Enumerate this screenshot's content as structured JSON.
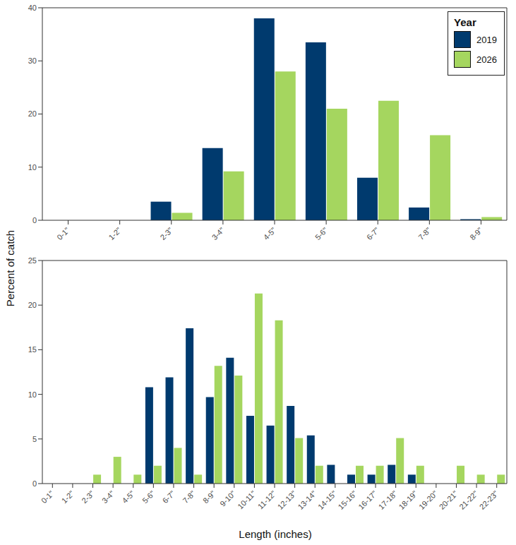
{
  "chart_data": [
    {
      "type": "bar",
      "categories": [
        "0-1\"",
        "1-2\"",
        "2-3\"",
        "3-4\"",
        "4-5\"",
        "5-6\"",
        "6-7\"",
        "7-8\"",
        "8-9\""
      ],
      "series": [
        {
          "name": "2019",
          "color": "#003a6e",
          "values": [
            0,
            0,
            3.5,
            13.6,
            38,
            33.5,
            8,
            2.4,
            0.2
          ]
        },
        {
          "name": "2026",
          "color": "#a5d65f",
          "values": [
            0,
            0,
            1.4,
            9.2,
            28,
            21,
            22.5,
            16,
            0.6
          ]
        }
      ],
      "ylim": [
        0,
        40
      ],
      "yticks": [
        0,
        10,
        20,
        30,
        40
      ],
      "grid": false,
      "legend": "top-right",
      "legend_title": "Year",
      "y_label": "Percent of catch"
    },
    {
      "type": "bar",
      "categories": [
        "0-1\"",
        "1-2\"",
        "2-3\"",
        "3-4\"",
        "4-5\"",
        "5-6\"",
        "6-7\"",
        "7-8\"",
        "8-9\"",
        "9-10\"",
        "10-11\"",
        "11-12\"",
        "12-13\"",
        "13-14\"",
        "14-15\"",
        "15-16\"",
        "16-17\"",
        "17-18\"",
        "18-19\"",
        "19-20\"",
        "20-21\"",
        "21-22\"",
        "22-23\""
      ],
      "series": [
        {
          "name": "2019",
          "color": "#003a6e",
          "values": [
            0,
            0,
            0,
            0,
            0,
            10.8,
            11.9,
            17.4,
            9.7,
            14.1,
            7.6,
            6.5,
            8.7,
            5.4,
            2.1,
            1.0,
            1.0,
            2.1,
            1.0,
            0,
            0,
            0,
            0
          ]
        },
        {
          "name": "2026",
          "color": "#a5d65f",
          "values": [
            0,
            0,
            1.0,
            3.0,
            1.0,
            2.0,
            4.0,
            1.0,
            13.2,
            12.1,
            21.3,
            18.3,
            5.1,
            2.0,
            0,
            2.0,
            2.0,
            5.1,
            2.0,
            0,
            2.0,
            1.0,
            1.0
          ]
        }
      ],
      "ylim": [
        0,
        25
      ],
      "yticks": [
        0,
        5,
        10,
        15,
        20,
        25
      ],
      "grid": false,
      "x_label": "Length (inches)"
    }
  ]
}
